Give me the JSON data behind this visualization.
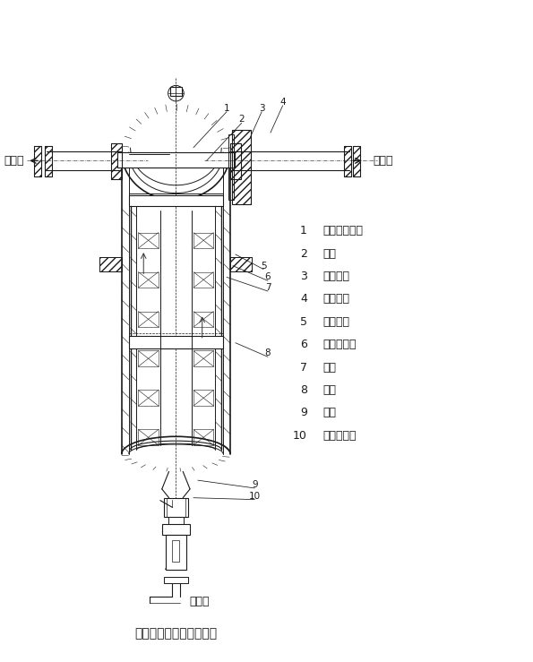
{
  "title": "过滤器结构图（法兰式）",
  "labels": {
    "1": "滤壳分隔腔体",
    "2": "隔板",
    "3": "密封垫片",
    "4": "配管法兰",
    "5": "密封垫片",
    "6": "滤芯密封圈",
    "7": "滤芯",
    "8": "滤壳",
    "9": "球阀",
    "10": "自动排水器"
  },
  "inlet_label": "进气口",
  "outlet_label": "出气口",
  "drain_label": "排水口",
  "bg_color": "#ffffff",
  "lc": "#1a1a1a",
  "title_fontsize": 10,
  "legend_fontsize": 9,
  "io_fontsize": 9
}
